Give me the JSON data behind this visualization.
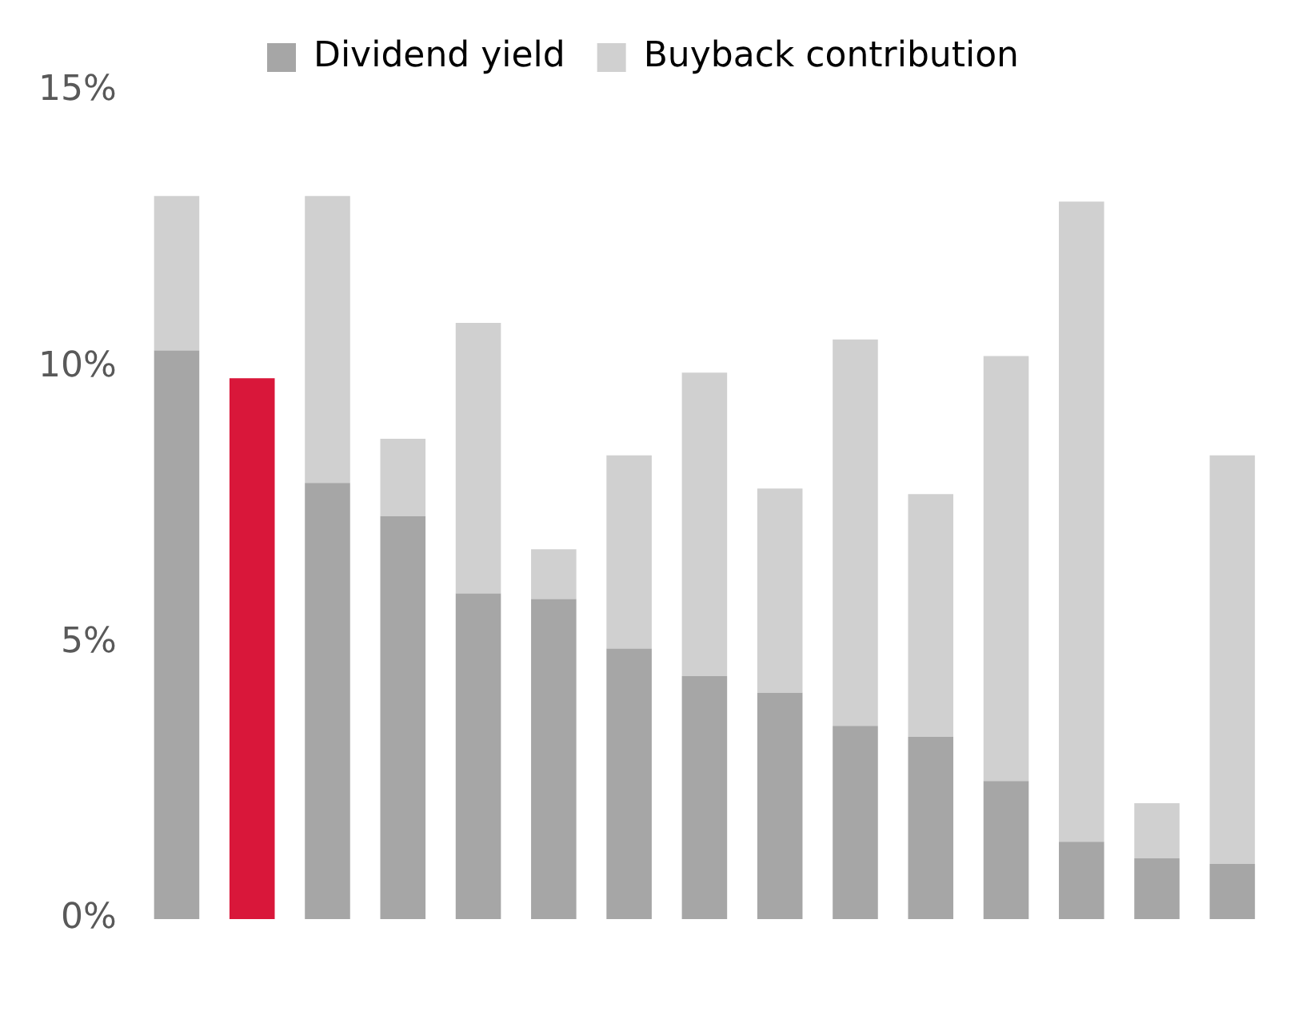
{
  "chart_data": {
    "type": "bar",
    "stacked": true,
    "categories": [
      null,
      null,
      null,
      null,
      null,
      null,
      null,
      null,
      null,
      null,
      null,
      null,
      null,
      null,
      null
    ],
    "series": [
      {
        "name": "Dividend yield",
        "color": "#a6a6a6",
        "colors": [
          "#a6a6a6",
          "#d9173a",
          "#a6a6a6",
          "#a6a6a6",
          "#a6a6a6",
          "#a6a6a6",
          "#a6a6a6",
          "#a6a6a6",
          "#a6a6a6",
          "#a6a6a6",
          "#a6a6a6",
          "#a6a6a6",
          "#a6a6a6",
          "#a6a6a6",
          "#a6a6a6"
        ],
        "values": [
          10.3,
          9.8,
          7.9,
          7.3,
          5.9,
          5.8,
          4.9,
          4.4,
          4.1,
          3.5,
          3.3,
          2.5,
          1.4,
          1.1,
          1.0
        ]
      },
      {
        "name": "Buyback contribution",
        "color": "#d0d0d0",
        "values": [
          2.8,
          null,
          5.2,
          1.4,
          4.9,
          0.9,
          3.5,
          5.5,
          3.7,
          7.0,
          4.4,
          7.7,
          11.6,
          1.0,
          7.4
        ]
      }
    ],
    "ylim": [
      0,
      15
    ],
    "yticks": [
      {
        "value": 0,
        "label": "0%"
      },
      {
        "value": 5,
        "label": "5%"
      },
      {
        "value": 10,
        "label": "10%"
      },
      {
        "value": 15,
        "label": "15%"
      }
    ],
    "grid": false,
    "legend": "top",
    "tick_labels": "y"
  }
}
